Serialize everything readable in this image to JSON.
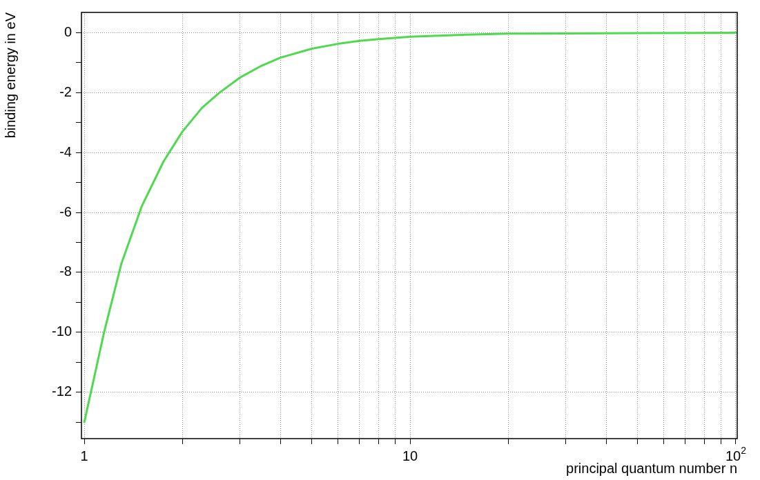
{
  "chart_data": {
    "type": "line",
    "xlabel": "principal quantum number n",
    "ylabel": "binding energy in eV",
    "log": "x",
    "grid": true,
    "legend": false,
    "marker": "none",
    "line_style": "solid",
    "xlim": [
      0.98,
      101
    ],
    "ylim": [
      -13.55,
      0.68
    ],
    "xticks": [
      1,
      {
        "value": 2,
        "label": null
      },
      {
        "value": 3,
        "label": null
      },
      {
        "value": 4,
        "label": null
      },
      {
        "value": 5,
        "label": null
      },
      {
        "value": 6,
        "label": null
      },
      {
        "value": 7,
        "label": null
      },
      {
        "value": 8,
        "label": null
      },
      {
        "value": 9,
        "label": null
      },
      10,
      {
        "value": 20,
        "label": null
      },
      {
        "value": 30,
        "label": null
      },
      {
        "value": 40,
        "label": null
      },
      {
        "value": 50,
        "label": null
      },
      {
        "value": 60,
        "label": null
      },
      {
        "value": 70,
        "label": null
      },
      {
        "value": 80,
        "label": null
      },
      {
        "value": 90,
        "label": null
      },
      {
        "value": 100,
        "label": "10$^{2}$"
      }
    ],
    "yticks": [
      {
        "value": -13,
        "label": null
      },
      -12,
      {
        "value": -11,
        "label": null
      },
      -10,
      {
        "value": -9,
        "label": null
      },
      -8,
      {
        "value": -7,
        "label": null
      },
      -6,
      {
        "value": -5,
        "label": null
      },
      -4,
      {
        "value": -3,
        "label": null
      },
      -2,
      {
        "value": -1,
        "label": null
      },
      0
    ],
    "series": [
      {
        "color": "#4fd94f",
        "x": [
          1,
          1.15,
          1.3,
          1.5,
          1.75,
          2,
          2.3,
          2.6,
          3,
          3.5,
          4,
          5,
          6,
          7,
          8,
          10,
          15,
          20,
          30,
          50,
          100
        ],
        "values": [
          -13.0,
          -10.0,
          -7.7,
          -5.8,
          -4.3,
          -3.3,
          -2.5,
          -2.0,
          -1.5,
          -1.1,
          -0.83,
          -0.53,
          -0.37,
          -0.27,
          -0.21,
          -0.13,
          -0.06,
          -0.03,
          -0.02,
          -0.01,
          0
        ]
      }
    ]
  }
}
